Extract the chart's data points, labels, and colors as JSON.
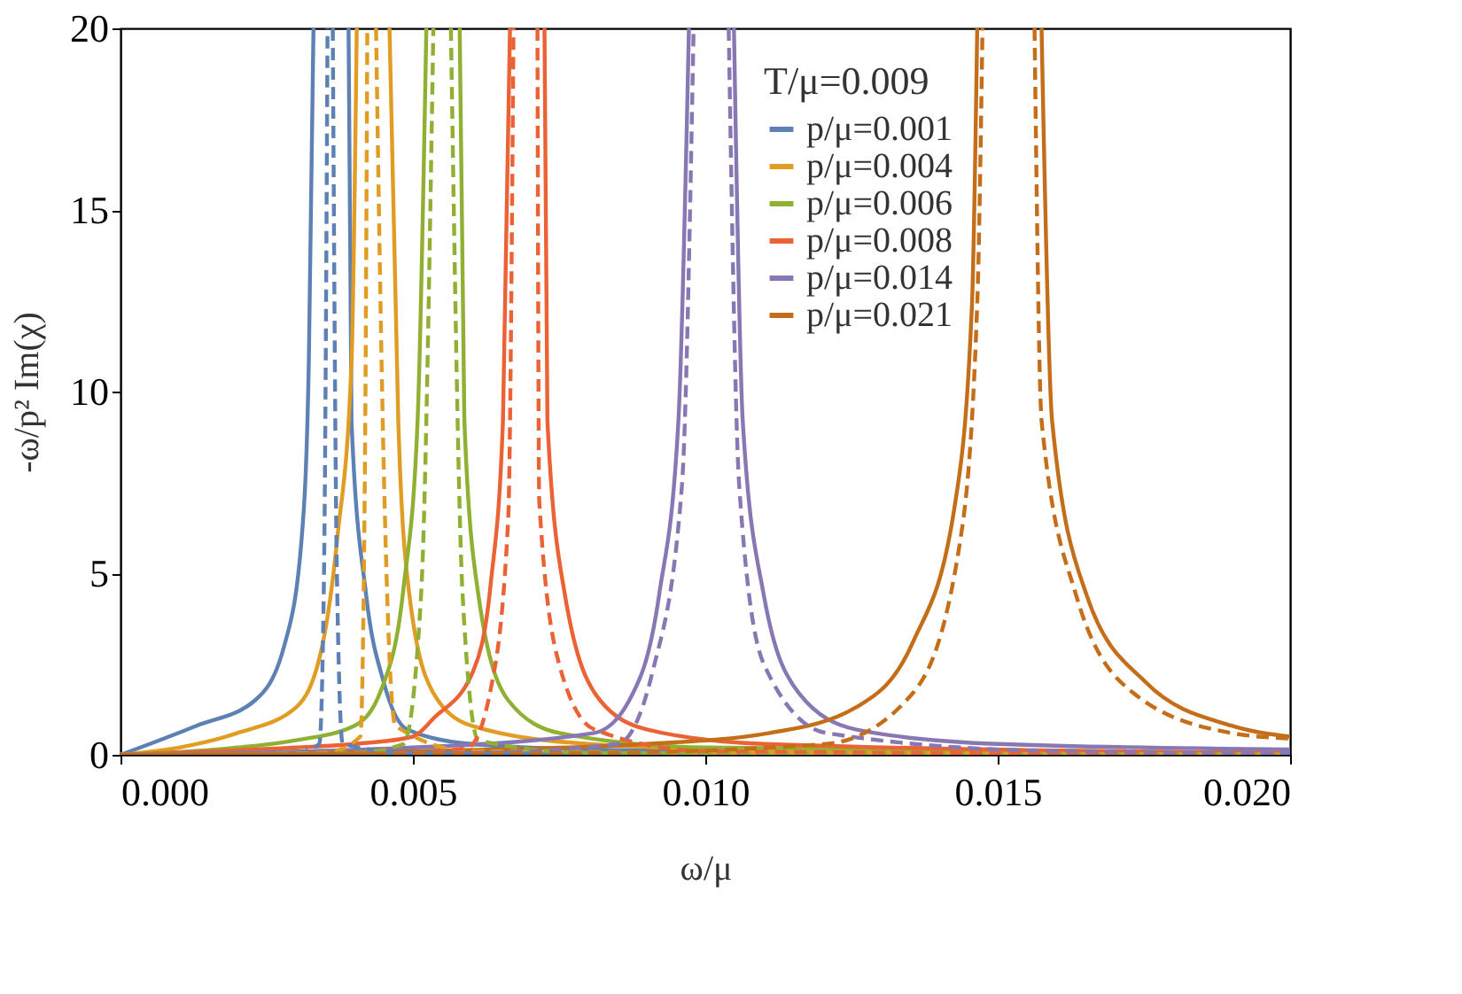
{
  "chart_data": {
    "type": "line",
    "xlabel": "ω/μ",
    "ylabel": "-ω/p² Im(χ)",
    "legend_title": "T/μ=0.009",
    "legend": "top",
    "grid": false,
    "xlim": [
      0,
      0.02
    ],
    "xticks": [
      {
        "value": 0,
        "label": "0.000"
      },
      {
        "value": 0.005,
        "label": "0.005"
      },
      {
        "value": 0.01,
        "label": "0.010"
      },
      {
        "value": 0.015,
        "label": "0.015"
      },
      {
        "value": 0.02,
        "label": "0.020"
      }
    ],
    "ylim": [
      0,
      20
    ],
    "yticks": [
      0,
      5,
      10,
      15,
      20
    ],
    "series": [
      {
        "name": "p/μ=0.001",
        "color": "#5e81b5",
        "line_style": "solid",
        "x": [
          0,
          0.0005,
          0.0013,
          0.0023,
          0.0028,
          0.0031,
          0.00322,
          0.0033,
          0.0036,
          0.0039,
          0.00395,
          0.0042,
          0.0045,
          0.0049,
          0.006,
          0.008,
          0.012,
          0.02
        ],
        "values": [
          0,
          0.3,
          0.8,
          1.5,
          3.0,
          6,
          10.8,
          20,
          null,
          20,
          9.2,
          4.4,
          2.0,
          0.7,
          0.3,
          0.15,
          0.08,
          0.04
        ]
      },
      {
        "name": "p/μ=0.004",
        "color": "#e19c24",
        "line_style": "solid",
        "x": [
          0,
          0.001,
          0.002,
          0.003,
          0.00345,
          0.00371,
          0.00395,
          0.00404,
          0.0043,
          0.0046,
          0.00475,
          0.00494,
          0.00535,
          0.006,
          0.008,
          0.012,
          0.02
        ],
        "values": [
          0,
          0.2,
          0.6,
          1.3,
          3.0,
          6,
          10.8,
          20,
          null,
          20,
          9.2,
          4.4,
          1.7,
          0.8,
          0.3,
          0.1,
          0.05
        ]
      },
      {
        "name": "p/μ=0.006",
        "color": "#8fb032",
        "line_style": "solid",
        "x": [
          0,
          0.002,
          0.003,
          0.004,
          0.00446,
          0.00484,
          0.00508,
          0.00523,
          0.0055,
          0.0058,
          0.00588,
          0.00612,
          0.00663,
          0.0075,
          0.01,
          0.02
        ],
        "values": [
          0,
          0.2,
          0.4,
          0.8,
          1.8,
          4.6,
          9.2,
          20,
          null,
          20,
          9.2,
          4.4,
          1.5,
          0.6,
          0.2,
          0.05
        ]
      },
      {
        "name": "p/μ=0.008",
        "color": "#eb6235",
        "line_style": "solid",
        "x": [
          0,
          0.003,
          0.004,
          0.005,
          0.00535,
          0.00603,
          0.00633,
          0.00654,
          0.00666,
          0.007,
          0.00725,
          0.0073,
          0.0076,
          0.0082,
          0.009,
          0.011,
          0.02
        ],
        "values": [
          0,
          0.2,
          0.3,
          0.5,
          1.0,
          2.3,
          4.7,
          9.2,
          20,
          null,
          20,
          9.2,
          4.4,
          1.5,
          0.7,
          0.3,
          0.05
        ]
      },
      {
        "name": "p/μ=0.014",
        "color": "#8778b3",
        "line_style": "solid",
        "x": [
          0,
          0.005,
          0.0081,
          0.0087,
          0.00921,
          0.00954,
          0.00972,
          0.0101,
          0.01049,
          0.01064,
          0.011,
          0.0116,
          0.01257,
          0.015,
          0.02
        ],
        "values": [
          0,
          0.2,
          0.6,
          1.5,
          4.4,
          9.2,
          20,
          null,
          20,
          9.2,
          4.4,
          1.7,
          0.7,
          0.3,
          0.15
        ]
      },
      {
        "name": "p/μ=0.021",
        "color": "#c56e1a",
        "line_style": "solid",
        "x": [
          0,
          0.005,
          0.009,
          0.0111,
          0.01257,
          0.01355,
          0.01426,
          0.01456,
          0.01465,
          0.0152,
          0.01575,
          0.01593,
          0.01652,
          0.01753,
          0.019,
          0.02
        ],
        "values": [
          0,
          0.1,
          0.3,
          0.6,
          1.3,
          3.1,
          6.8,
          12.4,
          20,
          null,
          20,
          9.2,
          4.4,
          2.0,
          0.8,
          0.5
        ]
      },
      {
        "color": "#5e81b5",
        "line_style": "dashed",
        "x": [
          0,
          0.003,
          0.0034,
          0.00348,
          0.00354,
          0.00358,
          0.00363,
          0.0037,
          0.0038,
          0.005,
          0.02
        ],
        "values": [
          0,
          0.05,
          0.3,
          5,
          20,
          null,
          20,
          5,
          0.3,
          0.05,
          0.01
        ]
      },
      {
        "color": "#e19c24",
        "line_style": "dashed",
        "x": [
          0,
          0.0035,
          0.0041,
          0.00418,
          0.00422,
          0.0043,
          0.00437,
          0.0045,
          0.0047,
          0.006,
          0.02
        ],
        "values": [
          0,
          0.05,
          0.5,
          8,
          20,
          null,
          20,
          8,
          0.8,
          0.1,
          0.01
        ]
      },
      {
        "color": "#8fb032",
        "line_style": "dashed",
        "x": [
          0,
          0.004,
          0.00484,
          0.00514,
          0.00535,
          0.0055,
          0.00565,
          0.00585,
          0.00612,
          0.008,
          0.02
        ],
        "values": [
          0,
          0.05,
          0.3,
          4.4,
          20,
          null,
          20,
          4.4,
          0.4,
          0.05,
          0.01
        ]
      },
      {
        "color": "#eb6235",
        "line_style": "dashed",
        "x": [
          0,
          0.005,
          0.00594,
          0.00633,
          0.00663,
          0.00672,
          0.0069,
          0.00713,
          0.00716,
          0.0075,
          0.0081,
          0.01,
          0.02
        ],
        "values": [
          0,
          0.05,
          0.2,
          1.8,
          6.5,
          20,
          null,
          20,
          7,
          2.5,
          0.7,
          0.1,
          0.02
        ]
      },
      {
        "color": "#8778b3",
        "line_style": "dashed",
        "x": [
          0,
          0.006,
          0.0085,
          0.0091,
          0.0096,
          0.0098,
          0.0101,
          0.0104,
          0.01058,
          0.011,
          0.01207,
          0.016,
          0.02
        ],
        "values": [
          0,
          0.05,
          0.3,
          2.3,
          7.4,
          20,
          null,
          20,
          7.4,
          2.5,
          0.6,
          0.1,
          0.05
        ]
      },
      {
        "color": "#c56e1a",
        "line_style": "dashed",
        "x": [
          0,
          0.008,
          0.01207,
          0.01355,
          0.01435,
          0.01465,
          0.01474,
          0.0152,
          0.01563,
          0.01575,
          0.01634,
          0.01732,
          0.019,
          0.02
        ],
        "values": [
          0,
          0.05,
          0.3,
          1.7,
          5.8,
          12.4,
          20,
          null,
          20,
          9.2,
          4.4,
          1.7,
          0.6,
          0.45
        ]
      }
    ]
  }
}
